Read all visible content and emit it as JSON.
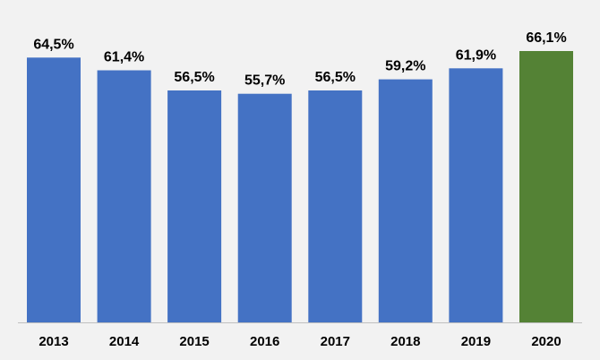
{
  "chart_data": {
    "type": "bar",
    "categories": [
      "2013",
      "2014",
      "2015",
      "2016",
      "2017",
      "2018",
      "2019",
      "2020"
    ],
    "values": [
      64.5,
      61.4,
      56.5,
      55.7,
      56.5,
      59.2,
      61.9,
      66.1
    ],
    "data_labels": [
      "64,5%",
      "61,4%",
      "56,5%",
      "55,7%",
      "56,5%",
      "59,2%",
      "61,9%",
      "66,1%"
    ],
    "title": "",
    "xlabel": "",
    "ylabel": "",
    "ylim": [
      0,
      66.1
    ],
    "grid": false,
    "legend": "none",
    "colors": {
      "default_bar": "#4472c4",
      "highlight_bar": "#548235",
      "background": "#f2f2f2",
      "axis": "#bfbfbf"
    },
    "highlight_index": 7
  }
}
